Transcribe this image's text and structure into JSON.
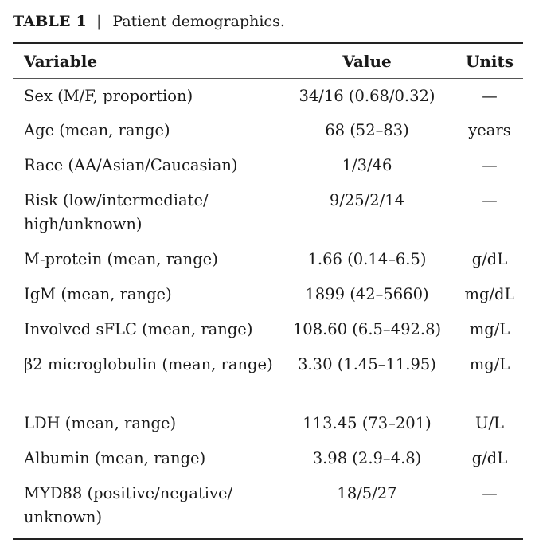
{
  "caption": {
    "label": "TABLE 1",
    "separator": "|",
    "title": "Patient demographics."
  },
  "table": {
    "headers": {
      "variable": "Variable",
      "value": "Value",
      "units": "Units"
    },
    "rows": [
      {
        "variable": "Sex (M/F, proportion)",
        "value": "34/16 (0.68/0.32)",
        "units": "—"
      },
      {
        "variable": "Age (mean, range)",
        "value": "68 (52–83)",
        "units": "years"
      },
      {
        "variable": "Race (AA/Asian/Caucasian)",
        "value": "1/3/46",
        "units": "—"
      },
      {
        "variable": "Risk (low/intermediate/ high/unknown)",
        "value": "9/25/2/14",
        "units": "—"
      },
      {
        "variable": "M-protein (mean, range)",
        "value": "1.66 (0.14–6.5)",
        "units": "g/dL"
      },
      {
        "variable": "IgM (mean, range)",
        "value": "1899 (42–5660)",
        "units": "mg/dL"
      },
      {
        "variable": "Involved sFLC (mean, range)",
        "value": "108.60 (6.5–492.8)",
        "units": "mg/L"
      },
      {
        "variable": "β2 microglobulin (mean, range)",
        "value": "3.30 (1.45–11.95)",
        "units": "mg/L"
      },
      {
        "variable": "LDH (mean, range)",
        "value": "113.45 (73–201)",
        "units": "U/L"
      },
      {
        "variable": "Albumin (mean, range)",
        "value": "3.98 (2.9–4.8)",
        "units": "g/dL"
      },
      {
        "variable": "MYD88 (positive/negative/ unknown)",
        "value": "18/5/27",
        "units": "—"
      }
    ]
  }
}
